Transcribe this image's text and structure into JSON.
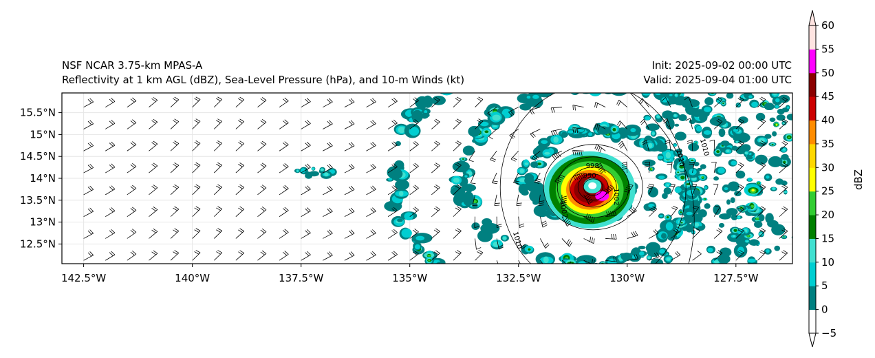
{
  "title": {
    "left_line1": "NSF NCAR 3.75-km MPAS-A",
    "left_line2": "Reflectivity at 1 km AGL (dBZ), Sea-Level Pressure (hPa), and 10-m Winds (kt)",
    "right_line1": "Init: 2025-09-02 00:00 UTC",
    "right_line2": "Valid: 2025-09-04 01:00 UTC"
  },
  "map": {
    "lon_ticks": [
      "142.5°W",
      "140°W",
      "137.5°W",
      "135°W",
      "132.5°W",
      "130°W",
      "127.5°W"
    ],
    "lon_values": [
      -142.5,
      -140,
      -137.5,
      -135,
      -132.5,
      -130,
      -127.5
    ],
    "lat_ticks": [
      "15.5°N",
      "15°N",
      "14.5°N",
      "14°N",
      "13.5°N",
      "13°N",
      "12.5°N"
    ],
    "lat_values": [
      15.5,
      15,
      14.5,
      14,
      13.5,
      13,
      12.5
    ],
    "lon_range": [
      -143.0,
      -126.2
    ],
    "lat_range": [
      12.05,
      15.95
    ],
    "storm_center": {
      "lon": -130.8,
      "lat": 13.83
    },
    "isobar_labels": [
      "1010",
      "1010",
      "1010",
      "1002",
      "1002",
      "998",
      "990"
    ]
  },
  "colorbar": {
    "label": "dBZ",
    "ticks": [
      "−5",
      "0",
      "5",
      "10",
      "15",
      "20",
      "25",
      "30",
      "35",
      "40",
      "45",
      "50",
      "55",
      "60"
    ],
    "colors": [
      "#ffffff",
      "#008080",
      "#00ced1",
      "#40e0d0",
      "#008000",
      "#32cd32",
      "#ffff00",
      "#ffd700",
      "#ff8c00",
      "#cc0000",
      "#8b0000",
      "#ff00ff",
      "#ffe4e1"
    ]
  }
}
